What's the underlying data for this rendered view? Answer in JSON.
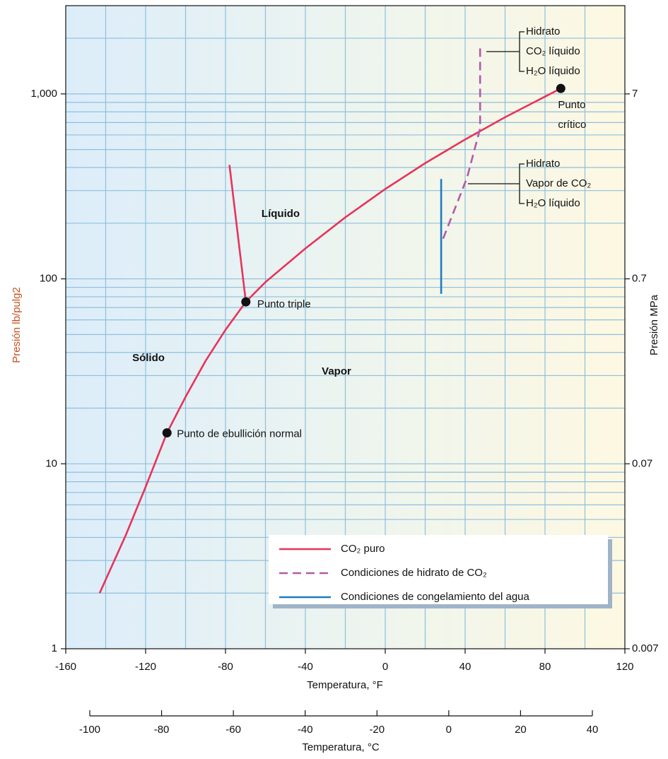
{
  "chart_data": {
    "type": "line",
    "x_label": "Temperatura, °F",
    "y_label": "Presión lb/pulg2",
    "y2_label": "Presión MPa",
    "x2_label": "Temperatura, °C",
    "xlim": [
      -160,
      120
    ],
    "xticks": [
      -160,
      -120,
      -80,
      -40,
      0,
      40,
      80,
      120
    ],
    "xgrid": [
      -140,
      -120,
      -100,
      -80,
      -60,
      -40,
      -20,
      0,
      20,
      40,
      60,
      80,
      100
    ],
    "ylim": [
      1,
      3000
    ],
    "log_y": true,
    "yticks": [
      1,
      10,
      100,
      {
        "value": 1000,
        "label": "1,000"
      }
    ],
    "ygrid": [
      2,
      3,
      4,
      5,
      6,
      7,
      8,
      9,
      10,
      20,
      30,
      40,
      50,
      60,
      70,
      80,
      90,
      100,
      200,
      300,
      400,
      500,
      600,
      700,
      800,
      900,
      1000,
      2000
    ],
    "y2lim": [
      0.007,
      21
    ],
    "y2ticks": [
      0.007,
      0.07,
      0.7,
      7
    ],
    "x2lim": [
      -100,
      40
    ],
    "x2ticks": [
      -100,
      -80,
      -60,
      -40,
      -20,
      0,
      20,
      40
    ],
    "grid": true,
    "series": [
      {
        "name": "CO₂ puro",
        "color": "#e8335a",
        "dash": false,
        "x": [
          -143,
          -130,
          -120,
          -109.3,
          -100,
          -90,
          -80,
          -69.8,
          -60,
          -40,
          -20,
          0,
          20,
          40,
          60,
          80,
          87.9,
          null,
          -69.8,
          -78
        ],
        "values": [
          2,
          4.1,
          7.5,
          14.7,
          23,
          36,
          53,
          75.1,
          96,
          146,
          215,
          306,
          422,
          567,
          748,
          967,
          1070,
          null,
          75.1,
          413
        ]
      },
      {
        "name": "Condiciones de hidrato de CO₂",
        "color": "#b25aa8",
        "dash": true,
        "x": [
          29,
          41,
          47.5,
          47.5
        ],
        "values": [
          165,
          353,
          650,
          1780
        ]
      },
      {
        "name": "Condiciones de congelamiento del agua",
        "color": "#1e7cc0",
        "dash": false,
        "x": [
          28,
          28
        ],
        "values": [
          83,
          347
        ]
      }
    ],
    "points": [
      {
        "label": [
          "Punto triple"
        ],
        "x": -69.8,
        "y": 75.1
      },
      {
        "label": [
          "Punto de ebullición normal"
        ],
        "x": -109.3,
        "y": 14.7
      },
      {
        "label": [
          "Punto",
          "crítico"
        ],
        "x": 87.9,
        "y": 1070
      }
    ],
    "regions": [
      "Líquido",
      "Sólido",
      "Vapor"
    ],
    "brackets": [
      [
        "Hidrato",
        "CO₂ líquido",
        "H₂O líquido"
      ],
      [
        "Hidrato",
        "Vapor de CO₂",
        "H₂O líquido"
      ]
    ]
  }
}
